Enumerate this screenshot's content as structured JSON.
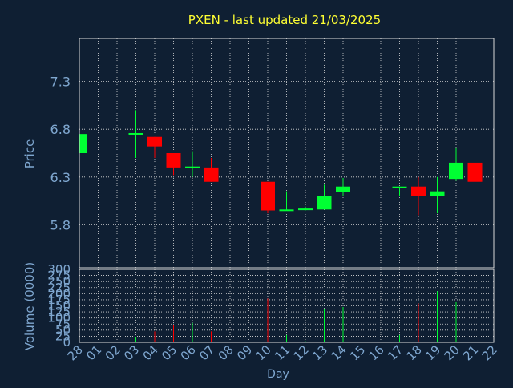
{
  "colors": {
    "background": "#0f1f33",
    "frame": "#d9d9d9",
    "grid": "#d9d9d9",
    "title": "#ffff33",
    "axis_text": "#7fa7d0",
    "up": "#00ff33",
    "down": "#ff0000"
  },
  "chart_data": [
    {
      "type": "candlestick",
      "title": "PXEN - last updated 21/03/2025",
      "ylabel": "Price",
      "xlabel": "",
      "ylim": [
        5.35,
        7.75
      ],
      "yticks": [
        5.8,
        6.3,
        6.8,
        7.3
      ],
      "ytick_labels": [
        "5.8",
        "6.3",
        "6.8",
        "7.3"
      ],
      "grid": true,
      "days": [
        "28",
        "01",
        "02",
        "03",
        "04",
        "05",
        "06",
        "07",
        "08",
        "09",
        "10",
        "11",
        "12",
        "13",
        "14",
        "15",
        "16",
        "17",
        "18",
        "19",
        "20",
        "21",
        "22"
      ],
      "candles": [
        {
          "day": "28",
          "open": 6.55,
          "close": 6.75,
          "high": 6.75,
          "low": 6.55
        },
        {
          "day": "03",
          "open": 6.75,
          "close": 6.76,
          "high": 7.0,
          "low": 6.5
        },
        {
          "day": "04",
          "open": 6.72,
          "close": 6.62,
          "high": 6.72,
          "low": 6.5
        },
        {
          "day": "05",
          "open": 6.55,
          "close": 6.4,
          "high": 6.55,
          "low": 6.32
        },
        {
          "day": "06",
          "open": 6.4,
          "close": 6.41,
          "high": 6.57,
          "low": 6.3
        },
        {
          "day": "07",
          "open": 6.4,
          "close": 6.25,
          "high": 6.5,
          "low": 6.25
        },
        {
          "day": "10",
          "open": 6.25,
          "close": 5.95,
          "high": 6.25,
          "low": 5.92
        },
        {
          "day": "11",
          "open": 5.95,
          "close": 5.96,
          "high": 6.15,
          "low": 5.95
        },
        {
          "day": "12",
          "open": 5.96,
          "close": 5.97,
          "high": 5.99,
          "low": 5.95
        },
        {
          "day": "13",
          "open": 5.96,
          "close": 6.1,
          "high": 6.22,
          "low": 5.96
        },
        {
          "day": "14",
          "open": 6.14,
          "close": 6.2,
          "high": 6.29,
          "low": 6.1
        },
        {
          "day": "17",
          "open": 6.19,
          "close": 6.2,
          "high": 6.2,
          "low": 6.1
        },
        {
          "day": "18",
          "open": 6.2,
          "close": 6.1,
          "high": 6.3,
          "low": 5.9
        },
        {
          "day": "19",
          "open": 6.1,
          "close": 6.15,
          "high": 6.3,
          "low": 5.92
        },
        {
          "day": "20",
          "open": 6.28,
          "close": 6.45,
          "high": 6.61,
          "low": 6.26
        },
        {
          "day": "21",
          "open": 6.45,
          "close": 6.25,
          "high": 6.55,
          "low": 6.22
        }
      ]
    },
    {
      "type": "bar",
      "title": "",
      "xlabel": "Day",
      "ylabel": "Volume (0000)",
      "ylim": [
        0,
        300
      ],
      "yticks": [
        0,
        25,
        50,
        75,
        100,
        125,
        150,
        175,
        200,
        225,
        250,
        275,
        300
      ],
      "ytick_labels": [
        "0",
        "25",
        "50",
        "75",
        "100",
        "125",
        "150",
        "175",
        "200",
        "225",
        "250",
        "275",
        "300"
      ],
      "grid": true,
      "categories": [
        "28",
        "01",
        "02",
        "03",
        "04",
        "05",
        "06",
        "07",
        "08",
        "09",
        "10",
        "11",
        "12",
        "13",
        "14",
        "15",
        "16",
        "17",
        "18",
        "19",
        "20",
        "21",
        "22"
      ],
      "bars": [
        {
          "day": "28",
          "value": 5,
          "direction": "up"
        },
        {
          "day": "03",
          "value": 20,
          "direction": "up"
        },
        {
          "day": "04",
          "value": 45,
          "direction": "down"
        },
        {
          "day": "05",
          "value": 70,
          "direction": "down"
        },
        {
          "day": "06",
          "value": 80,
          "direction": "up"
        },
        {
          "day": "07",
          "value": 45,
          "direction": "down"
        },
        {
          "day": "10",
          "value": 180,
          "direction": "down"
        },
        {
          "day": "11",
          "value": 30,
          "direction": "up"
        },
        {
          "day": "12",
          "value": 5,
          "direction": "up"
        },
        {
          "day": "13",
          "value": 135,
          "direction": "up"
        },
        {
          "day": "14",
          "value": 145,
          "direction": "up"
        },
        {
          "day": "17",
          "value": 30,
          "direction": "up"
        },
        {
          "day": "18",
          "value": 160,
          "direction": "down"
        },
        {
          "day": "19",
          "value": 210,
          "direction": "up"
        },
        {
          "day": "20",
          "value": 165,
          "direction": "up"
        },
        {
          "day": "21",
          "value": 285,
          "direction": "down"
        }
      ]
    }
  ]
}
